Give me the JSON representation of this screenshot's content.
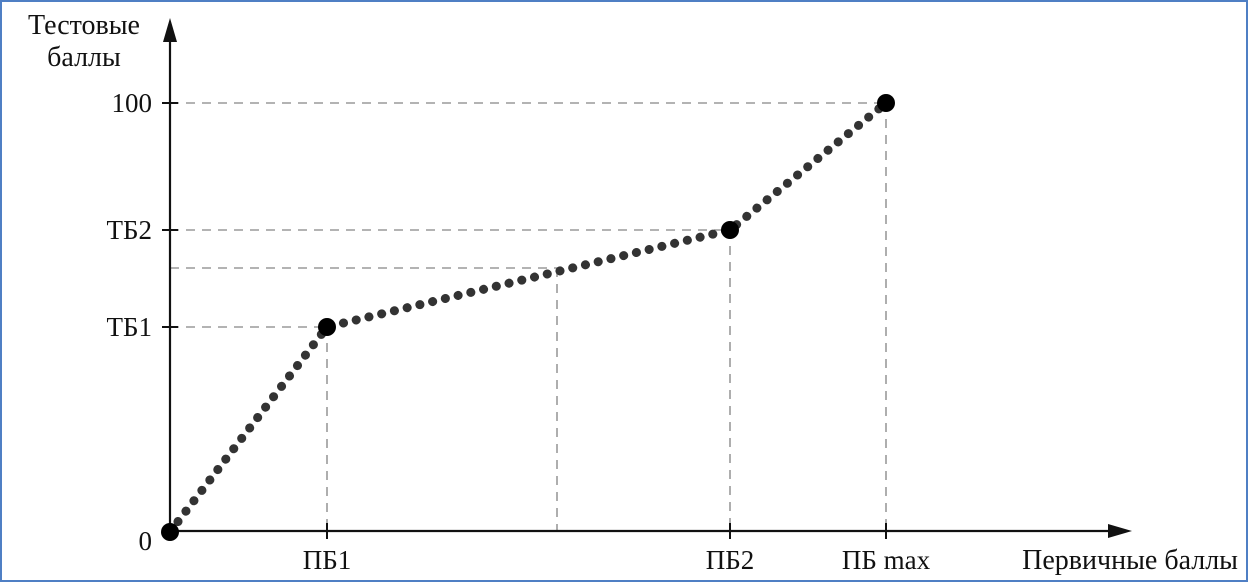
{
  "chart_data": {
    "type": "line",
    "y_title_lines": [
      "Тестовые",
      "баллы"
    ],
    "x_title": "Первичные баллы",
    "origin_label": "0",
    "y_ticks": [
      "100",
      "ТБ2",
      "ТБ1"
    ],
    "x_ticks": [
      "ПБ1",
      "ПБ2",
      "ПБ max"
    ],
    "series": [
      {
        "points": [
          [
            "0",
            "0"
          ],
          [
            "ПБ1",
            "ТБ1"
          ],
          [
            "ПБ2",
            "ТБ2"
          ],
          [
            "ПБ max",
            "100"
          ]
        ]
      }
    ],
    "line_style": "dotted",
    "guide_lines": "dashed",
    "colors": {
      "line": "#333333",
      "points": "#000000",
      "guides": "#9a9a9a",
      "frame": "#4f7fc4"
    }
  }
}
